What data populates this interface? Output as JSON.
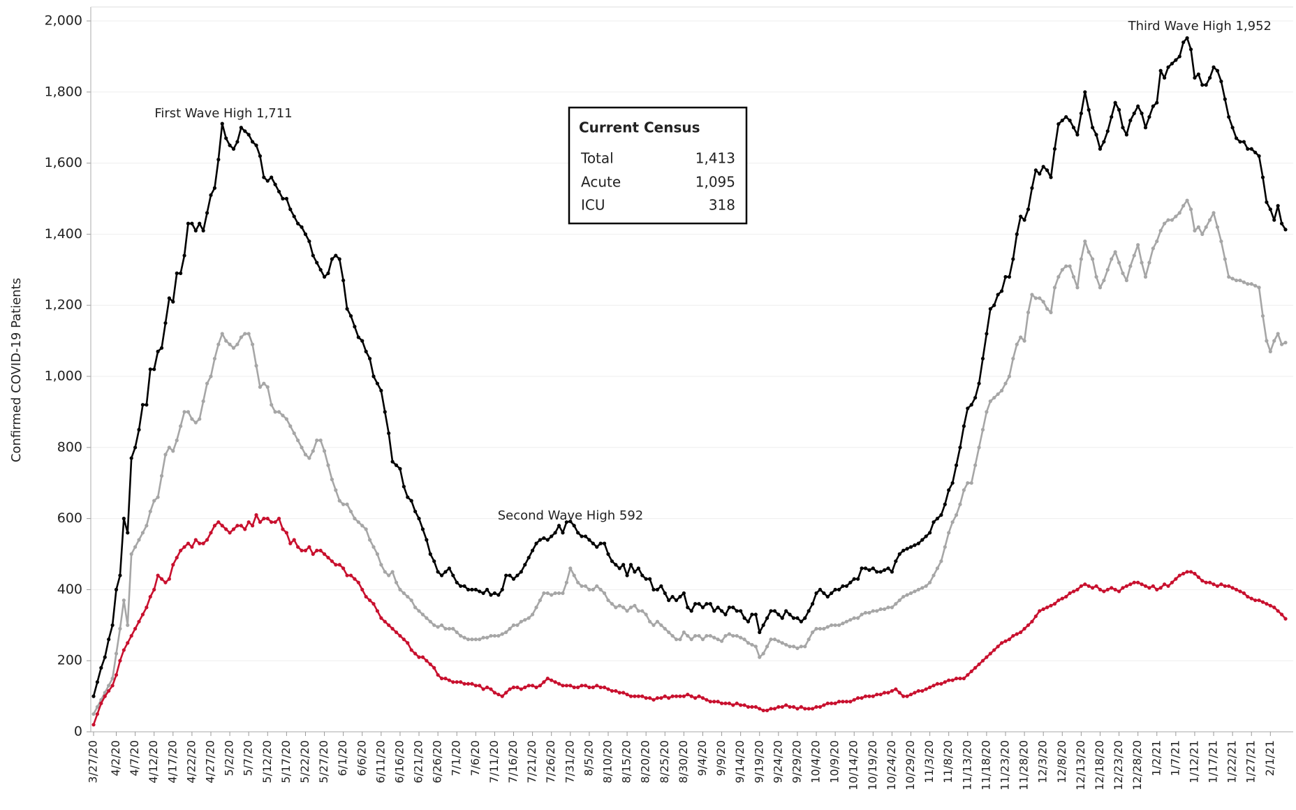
{
  "chart_data": {
    "type": "line",
    "y_label": "Confirmed COVID-19 Patients",
    "ylim": [
      0,
      2000
    ],
    "yticks": [
      0,
      200,
      400,
      600,
      800,
      {
        "value": 1000,
        "label": "1,000"
      },
      {
        "value": 1200,
        "label": "1,200"
      },
      {
        "value": 1400,
        "label": "1,400"
      },
      {
        "value": 1600,
        "label": "1,600"
      },
      {
        "value": 1800,
        "label": "1,800"
      },
      {
        "value": 2000,
        "label": "2,000"
      }
    ],
    "grid": true,
    "annotations": [
      "First Wave High 1,711",
      "Second Wave High 592",
      "Third Wave High 1,952"
    ],
    "census": {
      "title": "Current Census",
      "rows": [
        [
          "Total",
          "1,413"
        ],
        [
          "Acute",
          "1,095"
        ],
        [
          "ICU",
          "318"
        ]
      ]
    },
    "categories": [
      "3/27/20",
      null,
      null,
      null,
      null,
      null,
      "4/2/20",
      null,
      null,
      null,
      null,
      "4/7/20",
      null,
      null,
      null,
      null,
      "4/12/20",
      null,
      null,
      null,
      null,
      "4/17/20",
      null,
      null,
      null,
      null,
      "4/22/20",
      null,
      null,
      null,
      null,
      "4/27/20",
      null,
      null,
      null,
      null,
      "5/2/20",
      null,
      null,
      null,
      null,
      "5/7/20",
      null,
      null,
      null,
      null,
      "5/12/20",
      null,
      null,
      null,
      null,
      "5/17/20",
      null,
      null,
      null,
      null,
      "5/22/20",
      null,
      null,
      null,
      null,
      "5/27/20",
      null,
      null,
      null,
      null,
      "6/1/20",
      null,
      null,
      null,
      null,
      "6/6/20",
      null,
      null,
      null,
      null,
      "6/11/20",
      null,
      null,
      null,
      null,
      "6/16/20",
      null,
      null,
      null,
      null,
      "6/21/20",
      null,
      null,
      null,
      null,
      "6/26/20",
      null,
      null,
      null,
      null,
      "7/1/20",
      null,
      null,
      null,
      null,
      "7/6/20",
      null,
      null,
      null,
      null,
      "7/11/20",
      null,
      null,
      null,
      null,
      "7/16/20",
      null,
      null,
      null,
      null,
      "7/21/20",
      null,
      null,
      null,
      null,
      "7/26/20",
      null,
      null,
      null,
      null,
      "7/31/20",
      null,
      null,
      null,
      null,
      "8/5/20",
      null,
      null,
      null,
      null,
      "8/10/20",
      null,
      null,
      null,
      null,
      "8/15/20",
      null,
      null,
      null,
      null,
      "8/20/20",
      null,
      null,
      null,
      null,
      "8/25/20",
      null,
      null,
      null,
      null,
      "8/30/20",
      null,
      null,
      null,
      null,
      "9/4/20",
      null,
      null,
      null,
      null,
      "9/9/20",
      null,
      null,
      null,
      null,
      "9/14/20",
      null,
      null,
      null,
      null,
      "9/19/20",
      null,
      null,
      null,
      null,
      "9/24/20",
      null,
      null,
      null,
      null,
      "9/29/20",
      null,
      null,
      null,
      null,
      "10/4/20",
      null,
      null,
      null,
      null,
      "10/9/20",
      null,
      null,
      null,
      null,
      "10/14/20",
      null,
      null,
      null,
      null,
      "10/19/20",
      null,
      null,
      null,
      null,
      "10/24/20",
      null,
      null,
      null,
      null,
      "10/29/20",
      null,
      null,
      null,
      null,
      "11/3/20",
      null,
      null,
      null,
      null,
      "11/8/20",
      null,
      null,
      null,
      null,
      "11/13/20",
      null,
      null,
      null,
      null,
      "11/18/20",
      null,
      null,
      null,
      null,
      "11/23/20",
      null,
      null,
      null,
      null,
      "11/28/20",
      null,
      null,
      null,
      null,
      "12/3/20",
      null,
      null,
      null,
      null,
      "12/8/20",
      null,
      null,
      null,
      null,
      "12/13/20",
      null,
      null,
      null,
      null,
      "12/18/20",
      null,
      null,
      null,
      null,
      "12/23/20",
      null,
      null,
      null,
      null,
      "12/28/20",
      null,
      null,
      null,
      null,
      "1/2/21",
      null,
      null,
      null,
      null,
      "1/7/21",
      null,
      null,
      null,
      null,
      "1/12/21",
      null,
      null,
      null,
      null,
      "1/17/21",
      null,
      null,
      null,
      null,
      "1/22/21",
      null,
      null,
      null,
      null,
      "1/27/21",
      null,
      null,
      null,
      null,
      "2/1/21",
      null,
      null,
      null,
      null
    ],
    "series": [
      {
        "color": "#000000",
        "values": [
          100,
          140,
          180,
          210,
          260,
          300,
          400,
          440,
          600,
          560,
          770,
          800,
          850,
          920,
          920,
          1020,
          1020,
          1070,
          1080,
          1150,
          1220,
          1210,
          1290,
          1290,
          1340,
          1430,
          1430,
          1410,
          1430,
          1410,
          1460,
          1510,
          1530,
          1610,
          1711,
          1670,
          1650,
          1640,
          1660,
          1700,
          1690,
          1680,
          1660,
          1650,
          1620,
          1560,
          1550,
          1560,
          1540,
          1520,
          1500,
          1500,
          1470,
          1450,
          1430,
          1420,
          1400,
          1380,
          1340,
          1320,
          1300,
          1280,
          1290,
          1330,
          1340,
          1330,
          1270,
          1190,
          1170,
          1140,
          1110,
          1100,
          1070,
          1050,
          1000,
          980,
          960,
          900,
          840,
          760,
          750,
          740,
          690,
          660,
          650,
          620,
          600,
          570,
          540,
          500,
          480,
          450,
          440,
          450,
          460,
          440,
          420,
          410,
          410,
          400,
          400,
          400,
          395,
          390,
          400,
          385,
          390,
          385,
          400,
          440,
          440,
          430,
          440,
          450,
          470,
          490,
          510,
          530,
          540,
          545,
          540,
          550,
          560,
          580,
          560,
          590,
          592,
          580,
          560,
          550,
          550,
          540,
          530,
          520,
          530,
          530,
          500,
          480,
          470,
          460,
          470,
          440,
          470,
          450,
          460,
          440,
          430,
          430,
          400,
          400,
          410,
          390,
          370,
          380,
          370,
          380,
          390,
          350,
          340,
          360,
          360,
          350,
          360,
          360,
          340,
          350,
          340,
          330,
          350,
          350,
          340,
          340,
          320,
          310,
          330,
          330,
          280,
          300,
          320,
          340,
          340,
          330,
          320,
          340,
          330,
          320,
          320,
          310,
          320,
          340,
          360,
          390,
          400,
          390,
          380,
          390,
          400,
          400,
          410,
          410,
          420,
          430,
          430,
          460,
          460,
          455,
          460,
          450,
          450,
          455,
          460,
          450,
          480,
          500,
          510,
          515,
          520,
          525,
          530,
          540,
          550,
          560,
          590,
          600,
          610,
          640,
          680,
          700,
          750,
          800,
          860,
          910,
          920,
          940,
          980,
          1050,
          1120,
          1190,
          1200,
          1230,
          1240,
          1280,
          1280,
          1330,
          1400,
          1450,
          1440,
          1470,
          1530,
          1580,
          1570,
          1590,
          1580,
          1560,
          1640,
          1710,
          1720,
          1730,
          1720,
          1700,
          1680,
          1740,
          1800,
          1750,
          1700,
          1680,
          1640,
          1660,
          1690,
          1730,
          1770,
          1750,
          1700,
          1680,
          1720,
          1740,
          1760,
          1740,
          1700,
          1730,
          1760,
          1770,
          1860,
          1840,
          1870,
          1880,
          1890,
          1900,
          1940,
          1952,
          1920,
          1840,
          1850,
          1820,
          1820,
          1840,
          1870,
          1860,
          1830,
          1780,
          1730,
          1700,
          1670,
          1660,
          1660,
          1640,
          1640,
          1630,
          1620,
          1560,
          1490,
          1470,
          1440,
          1480,
          1430,
          1413
        ]
      },
      {
        "color": "#a6a6a6",
        "values": [
          50,
          70,
          90,
          110,
          130,
          150,
          220,
          290,
          370,
          300,
          500,
          520,
          540,
          560,
          580,
          620,
          650,
          660,
          720,
          780,
          800,
          790,
          820,
          860,
          900,
          900,
          880,
          870,
          880,
          930,
          980,
          1000,
          1050,
          1090,
          1120,
          1100,
          1090,
          1080,
          1090,
          1110,
          1120,
          1120,
          1090,
          1030,
          970,
          980,
          970,
          920,
          900,
          900,
          890,
          880,
          860,
          840,
          820,
          800,
          780,
          770,
          790,
          820,
          820,
          790,
          750,
          710,
          680,
          650,
          640,
          640,
          620,
          600,
          590,
          580,
          570,
          540,
          520,
          500,
          470,
          450,
          440,
          450,
          420,
          400,
          390,
          380,
          370,
          350,
          340,
          330,
          320,
          310,
          300,
          295,
          300,
          290,
          290,
          290,
          280,
          270,
          265,
          260,
          260,
          260,
          260,
          265,
          265,
          270,
          270,
          270,
          275,
          280,
          290,
          300,
          300,
          310,
          315,
          320,
          330,
          350,
          370,
          390,
          390,
          385,
          390,
          390,
          390,
          420,
          460,
          440,
          420,
          410,
          410,
          400,
          400,
          410,
          400,
          390,
          370,
          360,
          350,
          355,
          350,
          340,
          350,
          355,
          340,
          340,
          330,
          310,
          300,
          310,
          300,
          290,
          280,
          270,
          260,
          260,
          280,
          270,
          260,
          270,
          270,
          260,
          270,
          270,
          265,
          260,
          255,
          270,
          275,
          270,
          270,
          265,
          260,
          250,
          245,
          240,
          210,
          220,
          240,
          260,
          260,
          255,
          250,
          245,
          240,
          240,
          235,
          240,
          240,
          260,
          280,
          290,
          290,
          290,
          295,
          300,
          300,
          300,
          305,
          310,
          315,
          320,
          320,
          330,
          335,
          335,
          340,
          340,
          345,
          345,
          350,
          350,
          360,
          370,
          380,
          385,
          390,
          395,
          400,
          405,
          410,
          420,
          440,
          460,
          480,
          520,
          560,
          590,
          610,
          640,
          680,
          700,
          700,
          750,
          800,
          850,
          900,
          930,
          940,
          950,
          960,
          980,
          1000,
          1050,
          1090,
          1110,
          1100,
          1180,
          1230,
          1220,
          1220,
          1210,
          1190,
          1180,
          1250,
          1280,
          1300,
          1310,
          1310,
          1280,
          1250,
          1330,
          1380,
          1350,
          1330,
          1280,
          1250,
          1270,
          1300,
          1330,
          1350,
          1320,
          1290,
          1270,
          1310,
          1340,
          1370,
          1320,
          1280,
          1320,
          1360,
          1380,
          1410,
          1430,
          1440,
          1440,
          1450,
          1460,
          1480,
          1495,
          1470,
          1410,
          1420,
          1400,
          1420,
          1440,
          1460,
          1420,
          1380,
          1330,
          1280,
          1275,
          1270,
          1270,
          1265,
          1260,
          1260,
          1255,
          1250,
          1170,
          1100,
          1070,
          1100,
          1120,
          1090,
          1095
        ]
      },
      {
        "color": "#c8102e",
        "values": [
          20,
          50,
          80,
          100,
          115,
          130,
          160,
          200,
          230,
          250,
          270,
          290,
          310,
          330,
          350,
          380,
          400,
          440,
          430,
          420,
          430,
          470,
          490,
          510,
          520,
          530,
          520,
          540,
          530,
          530,
          540,
          560,
          580,
          590,
          580,
          570,
          560,
          570,
          580,
          580,
          570,
          590,
          580,
          610,
          590,
          600,
          600,
          590,
          590,
          600,
          570,
          560,
          530,
          540,
          520,
          510,
          510,
          520,
          500,
          510,
          510,
          500,
          490,
          480,
          470,
          470,
          460,
          440,
          440,
          430,
          420,
          400,
          380,
          370,
          360,
          340,
          320,
          310,
          300,
          290,
          280,
          270,
          260,
          250,
          230,
          220,
          210,
          210,
          200,
          190,
          180,
          160,
          150,
          150,
          145,
          140,
          140,
          140,
          135,
          135,
          135,
          130,
          130,
          120,
          125,
          120,
          110,
          105,
          100,
          110,
          120,
          125,
          125,
          120,
          125,
          130,
          130,
          125,
          130,
          140,
          150,
          145,
          140,
          135,
          130,
          130,
          130,
          125,
          125,
          130,
          130,
          125,
          125,
          130,
          125,
          125,
          120,
          115,
          115,
          110,
          110,
          105,
          100,
          100,
          100,
          100,
          95,
          95,
          90,
          95,
          95,
          100,
          95,
          100,
          100,
          100,
          100,
          105,
          100,
          95,
          100,
          95,
          90,
          85,
          85,
          85,
          80,
          80,
          80,
          75,
          80,
          75,
          75,
          70,
          70,
          70,
          65,
          60,
          60,
          65,
          65,
          70,
          70,
          75,
          70,
          70,
          65,
          70,
          65,
          65,
          65,
          70,
          70,
          75,
          80,
          80,
          80,
          85,
          85,
          85,
          85,
          90,
          95,
          95,
          100,
          100,
          100,
          105,
          105,
          110,
          110,
          115,
          120,
          110,
          100,
          100,
          105,
          110,
          115,
          115,
          120,
          125,
          130,
          135,
          135,
          140,
          145,
          145,
          150,
          150,
          150,
          160,
          170,
          180,
          190,
          200,
          210,
          220,
          230,
          240,
          250,
          255,
          260,
          270,
          275,
          280,
          290,
          300,
          310,
          325,
          340,
          345,
          350,
          355,
          360,
          370,
          375,
          380,
          390,
          395,
          400,
          410,
          415,
          410,
          405,
          410,
          400,
          395,
          400,
          405,
          400,
          395,
          405,
          410,
          415,
          420,
          420,
          415,
          410,
          405,
          410,
          400,
          405,
          415,
          410,
          420,
          430,
          440,
          445,
          450,
          450,
          445,
          435,
          425,
          420,
          420,
          415,
          410,
          415,
          410,
          410,
          405,
          400,
          395,
          390,
          380,
          375,
          370,
          370,
          365,
          360,
          355,
          350,
          340,
          330,
          318
        ]
      }
    ]
  }
}
